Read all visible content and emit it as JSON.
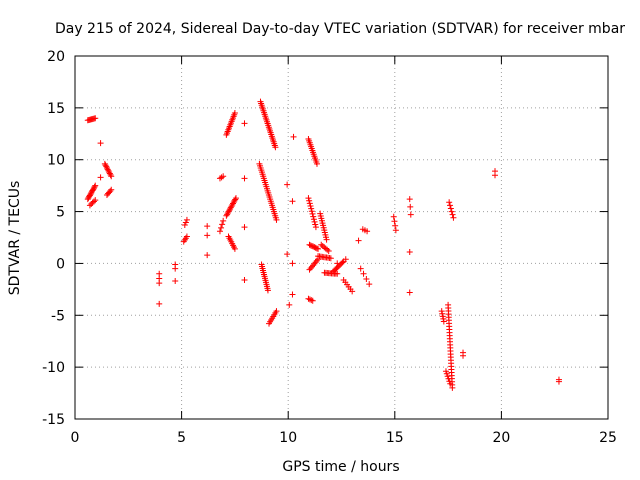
{
  "chart_data": {
    "type": "scatter",
    "title": "Day 215 of 2024, Sidereal Day-to-day VTEC variation (SDTVAR) for receiver mbar",
    "xlabel": "GPS time / hours",
    "ylabel": "SDTVAR / TECUs",
    "xlim": [
      0,
      25
    ],
    "ylim": [
      -15,
      20
    ],
    "xticks": [
      0,
      5,
      10,
      15,
      20,
      25
    ],
    "yticks": [
      -15,
      -10,
      -5,
      0,
      5,
      10,
      15,
      20
    ],
    "grid": true,
    "marker": "+",
    "color": "#ff0000",
    "segments": [
      {
        "x0": 0.6,
        "x1": 0.95,
        "y0": 13.8,
        "y1": 14.0,
        "n": 8
      },
      {
        "x0": 0.6,
        "x1": 0.95,
        "y0": 6.2,
        "y1": 7.5,
        "n": 12
      },
      {
        "x0": 0.7,
        "x1": 0.95,
        "y0": 5.6,
        "y1": 6.1,
        "n": 5
      },
      {
        "x0": 1.4,
        "x1": 1.7,
        "y0": 9.6,
        "y1": 8.4,
        "n": 10
      },
      {
        "x0": 1.5,
        "x1": 1.7,
        "y0": 6.6,
        "y1": 7.1,
        "n": 5
      },
      {
        "x0": 3.95,
        "x1": 3.95,
        "y0": -1.0,
        "y1": -1.9,
        "n": 3
      },
      {
        "x0": 4.7,
        "x1": 4.7,
        "y0": -0.1,
        "y1": -0.5,
        "n": 2
      },
      {
        "x0": 5.15,
        "x1": 5.25,
        "y0": 3.7,
        "y1": 4.2,
        "n": 3
      },
      {
        "x0": 5.1,
        "x1": 5.25,
        "y0": 2.1,
        "y1": 2.6,
        "n": 4
      },
      {
        "x0": 6.8,
        "x1": 6.95,
        "y0": 8.2,
        "y1": 8.4,
        "n": 3
      },
      {
        "x0": 6.8,
        "x1": 6.95,
        "y0": 3.1,
        "y1": 4.1,
        "n": 4
      },
      {
        "x0": 7.1,
        "x1": 7.5,
        "y0": 12.4,
        "y1": 14.5,
        "n": 14
      },
      {
        "x0": 7.1,
        "x1": 7.55,
        "y0": 4.6,
        "y1": 6.3,
        "n": 14
      },
      {
        "x0": 7.2,
        "x1": 7.5,
        "y0": 2.6,
        "y1": 1.4,
        "n": 8
      },
      {
        "x0": 8.7,
        "x1": 9.4,
        "y0": 15.6,
        "y1": 11.2,
        "n": 26
      },
      {
        "x0": 8.65,
        "x1": 9.45,
        "y0": 9.6,
        "y1": 4.2,
        "n": 28
      },
      {
        "x0": 8.75,
        "x1": 9.05,
        "y0": -0.1,
        "y1": -2.6,
        "n": 14
      },
      {
        "x0": 9.1,
        "x1": 9.45,
        "y0": -5.8,
        "y1": -4.6,
        "n": 8
      },
      {
        "x0": 10.95,
        "x1": 11.35,
        "y0": 12.0,
        "y1": 9.6,
        "n": 14
      },
      {
        "x0": 10.95,
        "x1": 11.3,
        "y0": 6.3,
        "y1": 3.5,
        "n": 12
      },
      {
        "x0": 11.0,
        "x1": 11.4,
        "y0": 1.8,
        "y1": 1.4,
        "n": 8
      },
      {
        "x0": 11.5,
        "x1": 11.8,
        "y0": 4.8,
        "y1": 2.3,
        "n": 12
      },
      {
        "x0": 11.55,
        "x1": 11.9,
        "y0": 1.8,
        "y1": 1.2,
        "n": 6
      },
      {
        "x0": 11.0,
        "x1": 11.4,
        "y0": -0.6,
        "y1": 0.4,
        "n": 8
      },
      {
        "x0": 11.4,
        "x1": 12.0,
        "y0": 0.7,
        "y1": 0.5,
        "n": 10
      },
      {
        "x0": 11.7,
        "x1": 12.3,
        "y0": -0.9,
        "y1": -1.0,
        "n": 10
      },
      {
        "x0": 12.1,
        "x1": 12.6,
        "y0": -0.8,
        "y1": 0.2,
        "n": 10
      },
      {
        "x0": 12.6,
        "x1": 13.0,
        "y0": -1.6,
        "y1": -2.7,
        "n": 6
      },
      {
        "x0": 10.95,
        "x1": 11.15,
        "y0": -3.4,
        "y1": -3.6,
        "n": 4
      },
      {
        "x0": 13.5,
        "x1": 13.7,
        "y0": 3.3,
        "y1": 3.1,
        "n": 3
      },
      {
        "x0": 13.4,
        "x1": 13.8,
        "y0": -0.5,
        "y1": -2.0,
        "n": 4
      },
      {
        "x0": 14.95,
        "x1": 15.05,
        "y0": 4.5,
        "y1": 3.2,
        "n": 4
      },
      {
        "x0": 15.7,
        "x1": 15.75,
        "y0": 6.2,
        "y1": 4.7,
        "n": 3
      },
      {
        "x0": 17.2,
        "x1": 17.3,
        "y0": -4.6,
        "y1": -5.6,
        "n": 5
      },
      {
        "x0": 17.5,
        "x1": 17.7,
        "y0": -4.0,
        "y1": -12.0,
        "n": 28
      },
      {
        "x0": 17.4,
        "x1": 17.6,
        "y0": -10.4,
        "y1": -11.6,
        "n": 6
      },
      {
        "x0": 17.55,
        "x1": 17.75,
        "y0": 5.9,
        "y1": 4.4,
        "n": 6
      }
    ],
    "points": [
      [
        1.2,
        11.6
      ],
      [
        1.2,
        8.3
      ],
      [
        7.95,
        13.5
      ],
      [
        7.95,
        8.2
      ],
      [
        7.95,
        3.5
      ],
      [
        7.95,
        -1.6
      ],
      [
        6.2,
        3.6
      ],
      [
        6.2,
        2.7
      ],
      [
        6.2,
        0.8
      ],
      [
        3.95,
        -3.9
      ],
      [
        4.7,
        -1.7
      ],
      [
        9.95,
        7.6
      ],
      [
        9.95,
        0.9
      ],
      [
        10.2,
        6.0
      ],
      [
        10.2,
        0.0
      ],
      [
        10.2,
        -3.0
      ],
      [
        10.05,
        -4.0
      ],
      [
        10.25,
        12.2
      ],
      [
        15.7,
        1.1
      ],
      [
        15.7,
        -2.8
      ],
      [
        18.2,
        -8.6
      ],
      [
        18.2,
        -8.9
      ],
      [
        19.7,
        8.9
      ],
      [
        19.7,
        8.5
      ],
      [
        22.7,
        -11.2
      ],
      [
        22.7,
        -11.4
      ],
      [
        13.3,
        2.2
      ],
      [
        12.3,
        0.0
      ],
      [
        12.7,
        0.4
      ]
    ]
  }
}
